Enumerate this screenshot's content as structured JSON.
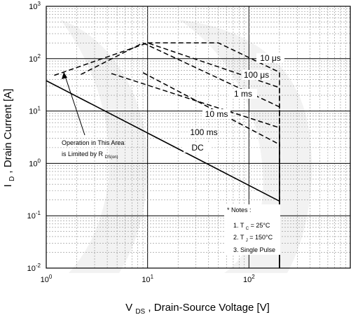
{
  "chart_data": {
    "type": "line",
    "title": "",
    "xlabel": {
      "main": "V",
      "sub": "DS",
      "rest": ", Drain-Source Voltage [V]"
    },
    "ylabel": {
      "main": "I",
      "sub": "D",
      "rest": ", Drain Current [A]"
    },
    "xscale": "log",
    "yscale": "log",
    "xlim": [
      1,
      1000
    ],
    "ylim": [
      0.01,
      1000
    ],
    "grid": true,
    "x_ticks": [
      {
        "value": 1,
        "base": "10",
        "exp": "0"
      },
      {
        "value": 10,
        "base": "10",
        "exp": "1"
      },
      {
        "value": 100,
        "base": "10",
        "exp": "2"
      }
    ],
    "y_ticks": [
      {
        "value": 1000,
        "base": "10",
        "exp": "3"
      },
      {
        "value": 100,
        "base": "10",
        "exp": "2"
      },
      {
        "value": 10,
        "base": "10",
        "exp": "1"
      },
      {
        "value": 1,
        "base": "10",
        "exp": "0"
      },
      {
        "value": 0.1,
        "base": "10",
        "exp": "-1"
      },
      {
        "value": 0.01,
        "base": "10",
        "exp": "-2"
      }
    ],
    "series": [
      {
        "id": "dc",
        "name": "DC",
        "style": "solid",
        "x": [
          1,
          200,
          200
        ],
        "y": [
          38,
          0.19,
          0.01
        ]
      },
      {
        "id": "10us",
        "name": "10 μs",
        "style": "dashed",
        "x": [
          10,
          50,
          200,
          200
        ],
        "y": [
          200,
          200,
          55,
          0.01
        ]
      },
      {
        "id": "100us",
        "name": "100 μs",
        "style": "dashed",
        "x": [
          1.2,
          10,
          200,
          200
        ],
        "y": [
          48,
          200,
          28,
          0.01
        ]
      },
      {
        "id": "1ms",
        "name": "1 ms",
        "style": "dashed",
        "x": [
          2.2,
          9,
          200,
          200
        ],
        "y": [
          50,
          200,
          12,
          0.01
        ]
      },
      {
        "id": "10ms",
        "name": "10 ms",
        "style": "dashed",
        "x": [
          4.4,
          200,
          200
        ],
        "y": [
          52,
          4.8,
          0.01
        ]
      },
      {
        "id": "100ms",
        "name": "100 ms",
        "style": "dashed",
        "x": [
          9,
          200,
          200
        ],
        "y": [
          54,
          2.3,
          0.01
        ]
      }
    ],
    "annotations": {
      "operation": {
        "line1": "Operation in This Area",
        "line2_main": "is Limited by R",
        "line2_sub": "DS(on)"
      },
      "notes": {
        "title": "* Notes :",
        "note1_pre": "1. T",
        "note1_sub": "C",
        "note1_post": " = 25°C",
        "note2_pre": "2. T",
        "note2_sub": "J",
        "note2_post": " = 150°C",
        "note3": "3. Single Pulse"
      }
    },
    "colors": {
      "line": "#000000",
      "grid_major": "#000000",
      "grid_minor": "#8f8f8f",
      "watermark": "#f2f2f2"
    }
  }
}
